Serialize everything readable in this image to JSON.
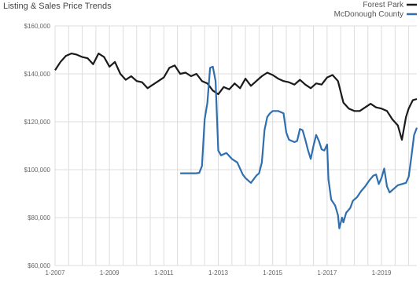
{
  "chart_data": {
    "type": "line",
    "title": "Listing & Sales Price Trends",
    "xlabel": "",
    "ylabel": "",
    "x_ticks": [
      "1-2007",
      "1-2009",
      "1-2011",
      "1-2013",
      "1-2015",
      "1-2017",
      "1-2019"
    ],
    "y_ticks": [
      "$160,000",
      "$140,000",
      "$120,000",
      "$100,000",
      "$80,000",
      "$60,000"
    ],
    "ylim": [
      60000,
      160000
    ],
    "xlim": [
      2007.0,
      2020.3
    ],
    "grid": true,
    "legend_position": "top-right",
    "series": [
      {
        "name": "Forest Park",
        "color": "#1a1a1a",
        "points": [
          [
            2007.0,
            141500
          ],
          [
            2007.2,
            145000
          ],
          [
            2007.4,
            147500
          ],
          [
            2007.6,
            148500
          ],
          [
            2007.8,
            148000
          ],
          [
            2008.0,
            147000
          ],
          [
            2008.2,
            146500
          ],
          [
            2008.4,
            144000
          ],
          [
            2008.6,
            148500
          ],
          [
            2008.8,
            147000
          ],
          [
            2009.0,
            143000
          ],
          [
            2009.2,
            145000
          ],
          [
            2009.4,
            140000
          ],
          [
            2009.6,
            137500
          ],
          [
            2009.8,
            139000
          ],
          [
            2010.0,
            137000
          ],
          [
            2010.2,
            136500
          ],
          [
            2010.4,
            134000
          ],
          [
            2010.6,
            135500
          ],
          [
            2010.8,
            137000
          ],
          [
            2011.0,
            138500
          ],
          [
            2011.2,
            142500
          ],
          [
            2011.4,
            143500
          ],
          [
            2011.6,
            140000
          ],
          [
            2011.8,
            140500
          ],
          [
            2012.0,
            139000
          ],
          [
            2012.2,
            140000
          ],
          [
            2012.4,
            137000
          ],
          [
            2012.6,
            136000
          ],
          [
            2012.8,
            133000
          ],
          [
            2013.0,
            131500
          ],
          [
            2013.2,
            134500
          ],
          [
            2013.4,
            133500
          ],
          [
            2013.6,
            136000
          ],
          [
            2013.8,
            134000
          ],
          [
            2014.0,
            138000
          ],
          [
            2014.2,
            135000
          ],
          [
            2014.4,
            137000
          ],
          [
            2014.6,
            139000
          ],
          [
            2014.8,
            140500
          ],
          [
            2015.0,
            139500
          ],
          [
            2015.2,
            138000
          ],
          [
            2015.4,
            137000
          ],
          [
            2015.6,
            136500
          ],
          [
            2015.8,
            135500
          ],
          [
            2016.0,
            137500
          ],
          [
            2016.2,
            135500
          ],
          [
            2016.4,
            134000
          ],
          [
            2016.6,
            136000
          ],
          [
            2016.8,
            135500
          ],
          [
            2017.0,
            138500
          ],
          [
            2017.2,
            139500
          ],
          [
            2017.4,
            137000
          ],
          [
            2017.6,
            128000
          ],
          [
            2017.8,
            125500
          ],
          [
            2018.0,
            124500
          ],
          [
            2018.2,
            124500
          ],
          [
            2018.4,
            126000
          ],
          [
            2018.6,
            127500
          ],
          [
            2018.8,
            126000
          ],
          [
            2019.0,
            125500
          ],
          [
            2019.2,
            124500
          ],
          [
            2019.4,
            121000
          ],
          [
            2019.6,
            118500
          ],
          [
            2019.75,
            112500
          ],
          [
            2019.9,
            122000
          ],
          [
            2020.0,
            125500
          ],
          [
            2020.15,
            129000
          ],
          [
            2020.3,
            129500
          ]
        ]
      },
      {
        "name": "McDonough County",
        "color": "#2f6fae",
        "points": [
          [
            2011.6,
            98500
          ],
          [
            2011.8,
            98500
          ],
          [
            2012.0,
            98500
          ],
          [
            2012.2,
            98500
          ],
          [
            2012.3,
            98700
          ],
          [
            2012.4,
            101500
          ],
          [
            2012.5,
            121000
          ],
          [
            2012.6,
            128000
          ],
          [
            2012.7,
            142500
          ],
          [
            2012.8,
            143000
          ],
          [
            2012.9,
            137000
          ],
          [
            2013.0,
            108000
          ],
          [
            2013.1,
            106000
          ],
          [
            2013.3,
            107000
          ],
          [
            2013.5,
            104500
          ],
          [
            2013.7,
            103000
          ],
          [
            2013.9,
            98000
          ],
          [
            2014.0,
            96500
          ],
          [
            2014.2,
            94500
          ],
          [
            2014.4,
            97500
          ],
          [
            2014.5,
            98500
          ],
          [
            2014.6,
            103000
          ],
          [
            2014.7,
            116500
          ],
          [
            2014.8,
            122000
          ],
          [
            2014.9,
            123500
          ],
          [
            2015.0,
            124500
          ],
          [
            2015.2,
            124500
          ],
          [
            2015.4,
            123500
          ],
          [
            2015.5,
            115500
          ],
          [
            2015.6,
            112500
          ],
          [
            2015.8,
            111500
          ],
          [
            2015.9,
            112000
          ],
          [
            2016.0,
            117000
          ],
          [
            2016.1,
            116500
          ],
          [
            2016.2,
            112500
          ],
          [
            2016.3,
            108000
          ],
          [
            2016.4,
            104500
          ],
          [
            2016.5,
            110000
          ],
          [
            2016.6,
            114500
          ],
          [
            2016.7,
            112000
          ],
          [
            2016.8,
            108500
          ],
          [
            2016.9,
            108000
          ],
          [
            2017.0,
            110500
          ],
          [
            2017.05,
            96000
          ],
          [
            2017.15,
            87500
          ],
          [
            2017.3,
            85000
          ],
          [
            2017.4,
            81000
          ],
          [
            2017.45,
            75500
          ],
          [
            2017.55,
            80000
          ],
          [
            2017.6,
            78000
          ],
          [
            2017.7,
            82000
          ],
          [
            2017.85,
            84000
          ],
          [
            2017.95,
            87000
          ],
          [
            2018.1,
            88500
          ],
          [
            2018.25,
            91000
          ],
          [
            2018.4,
            93000
          ],
          [
            2018.55,
            95500
          ],
          [
            2018.7,
            97500
          ],
          [
            2018.8,
            98000
          ],
          [
            2018.9,
            94000
          ],
          [
            2019.0,
            96500
          ],
          [
            2019.1,
            100500
          ],
          [
            2019.2,
            93000
          ],
          [
            2019.3,
            90500
          ],
          [
            2019.45,
            92000
          ],
          [
            2019.6,
            93500
          ],
          [
            2019.75,
            94000
          ],
          [
            2019.9,
            94500
          ],
          [
            2020.0,
            97000
          ],
          [
            2020.1,
            105500
          ],
          [
            2020.2,
            114500
          ],
          [
            2020.3,
            117500
          ]
        ]
      }
    ]
  }
}
